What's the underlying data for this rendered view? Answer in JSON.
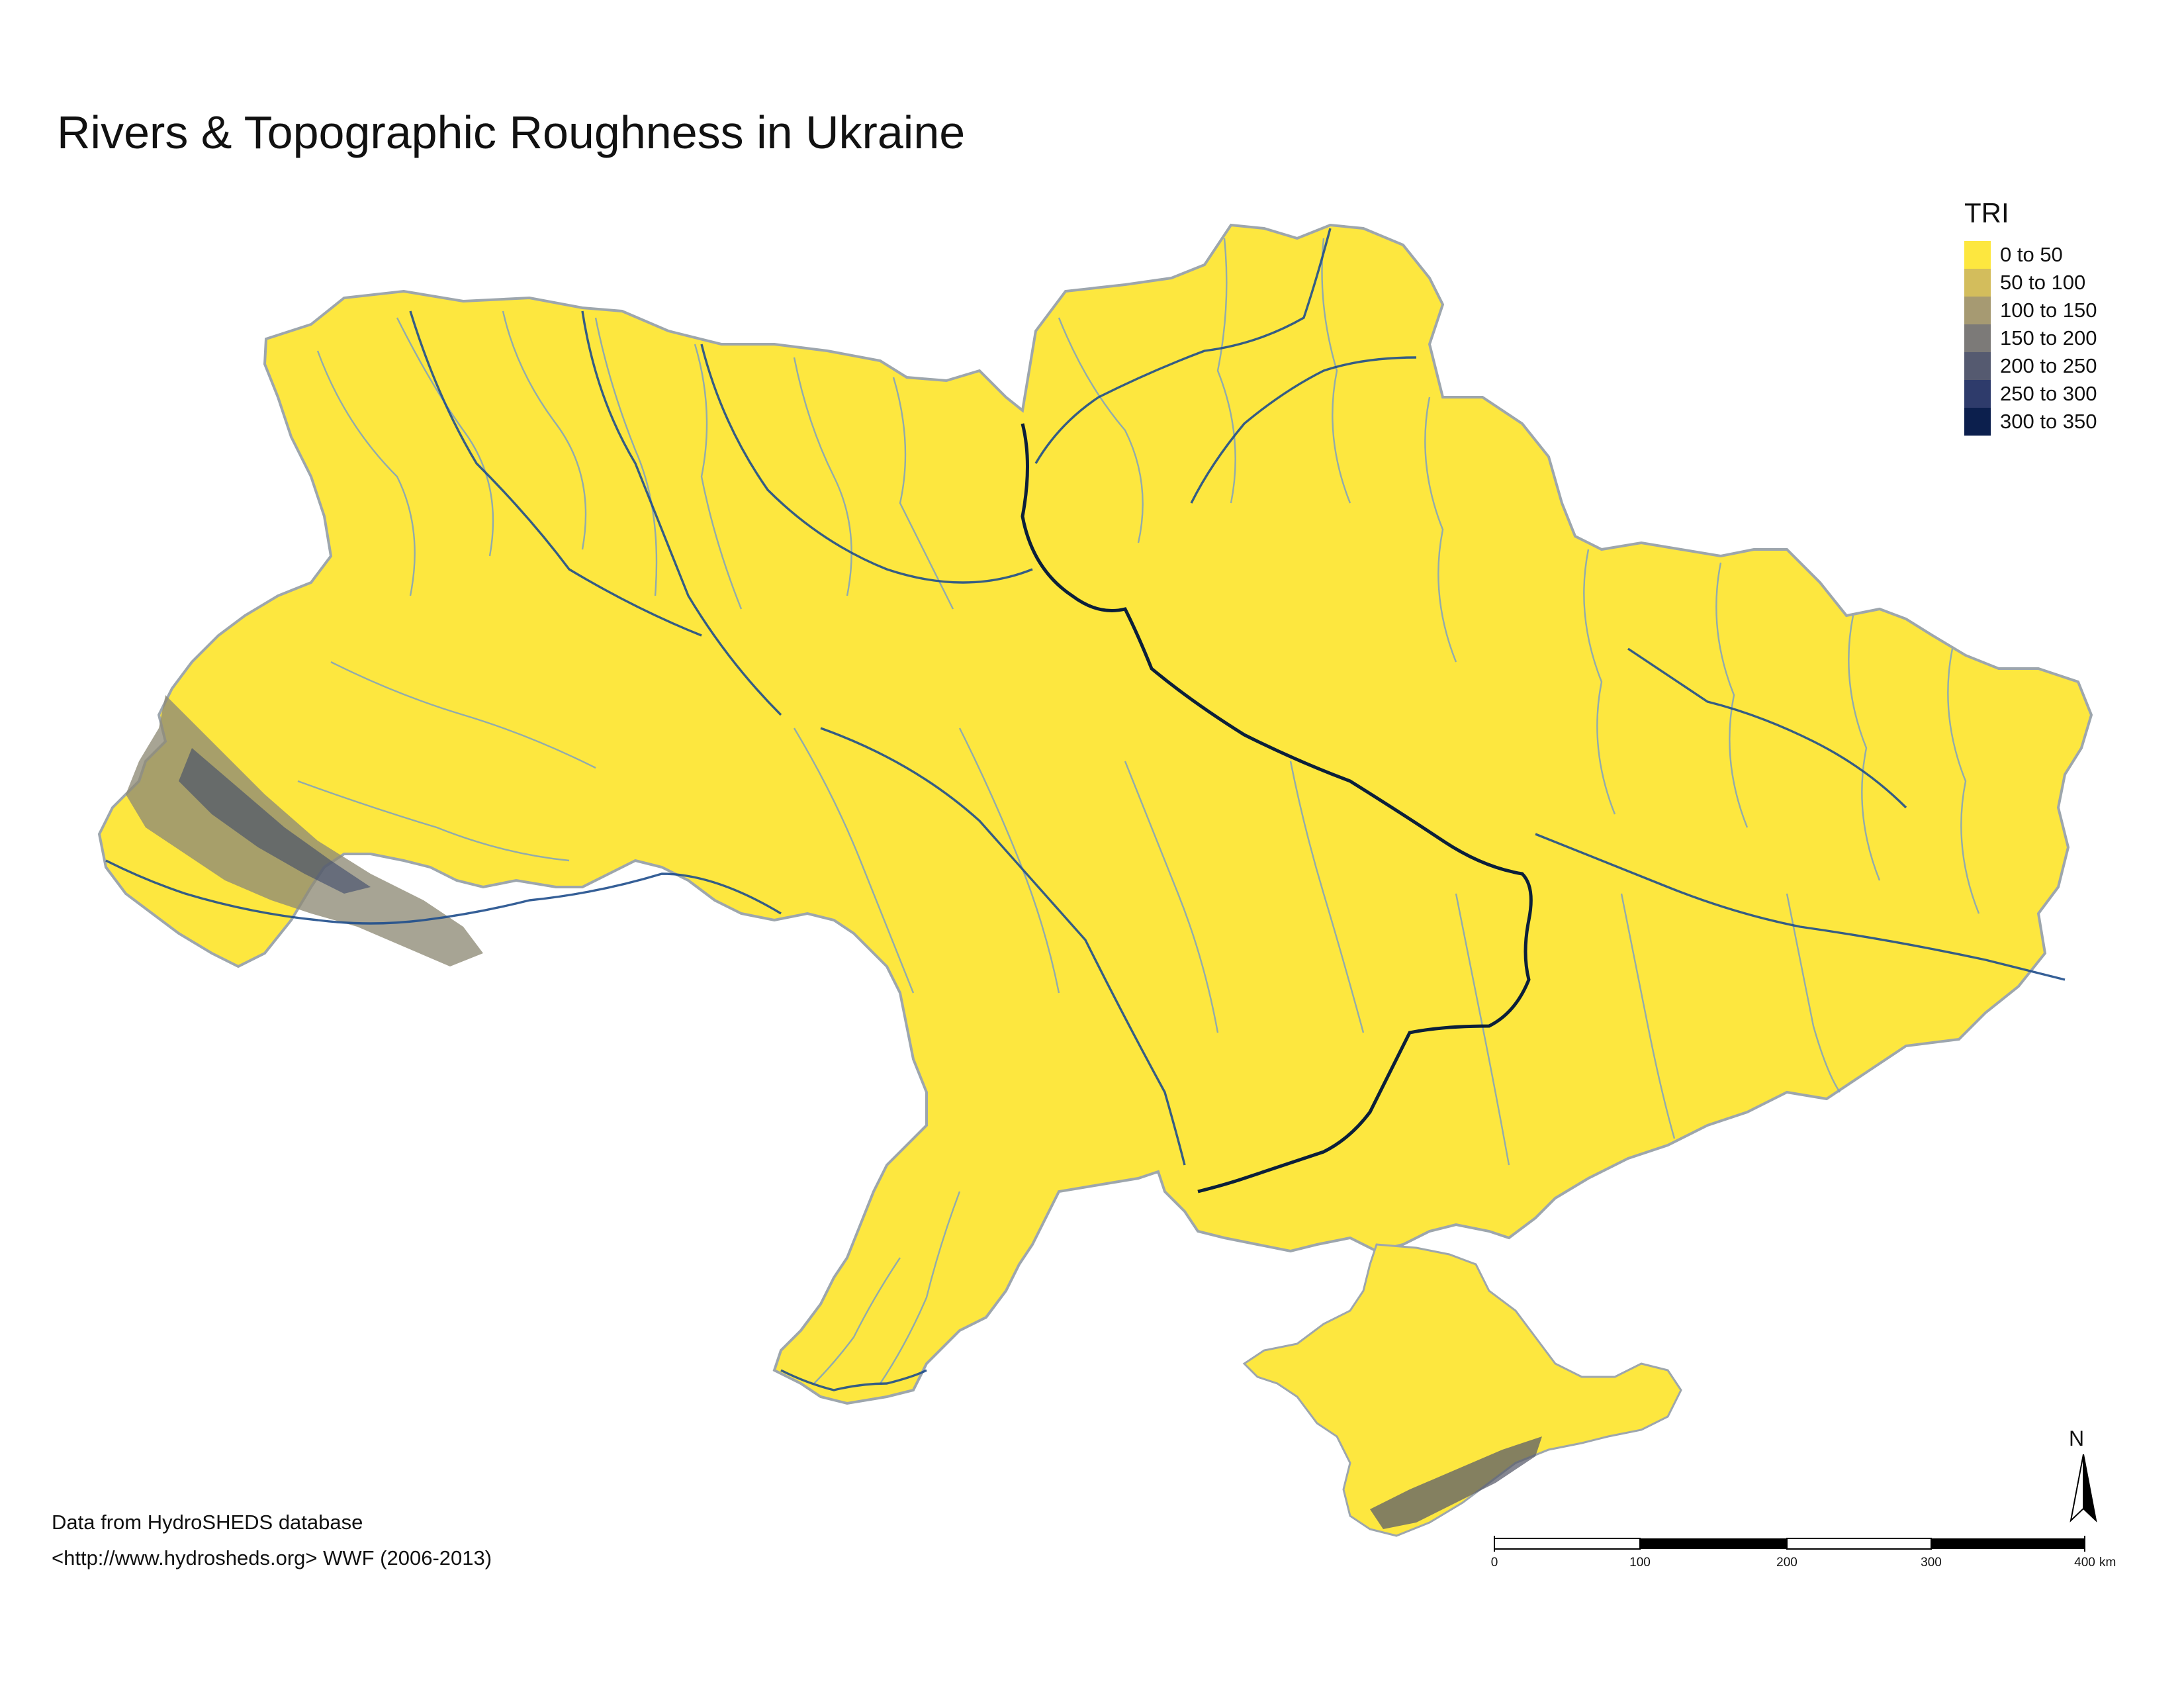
{
  "map": {
    "title": "Rivers & Topographic Roughness in Ukraine",
    "colors": {
      "land": "#fde73f",
      "land_outline": "#9da6ad",
      "rivers_minor": "#7ea0c0",
      "rivers_major": "#1f4e8c",
      "river_dnipro": "#0b1f3a"
    }
  },
  "legend": {
    "title": "TRI",
    "items": [
      {
        "label": "0 to 50",
        "color": "#fde73f"
      },
      {
        "label": "50 to 100",
        "color": "#d3bd5c"
      },
      {
        "label": "100 to 150",
        "color": "#a69a72"
      },
      {
        "label": "150 to 200",
        "color": "#7c7a78"
      },
      {
        "label": "200 to 250",
        "color": "#555a70"
      },
      {
        "label": "250 to 300",
        "color": "#2e3b6b"
      },
      {
        "label": "300 to 350",
        "color": "#0c1f4d"
      }
    ]
  },
  "credits": {
    "line1": "Data from HydroSHEDS database",
    "line2": "<http://www.hydrosheds.org> WWF (2006-2013)"
  },
  "scale_bar": {
    "ticks": [
      "0",
      "100",
      "200",
      "300",
      "400"
    ],
    "unit": "km"
  },
  "north_arrow": {
    "label": "N",
    "icon": "north-arrow-icon"
  }
}
